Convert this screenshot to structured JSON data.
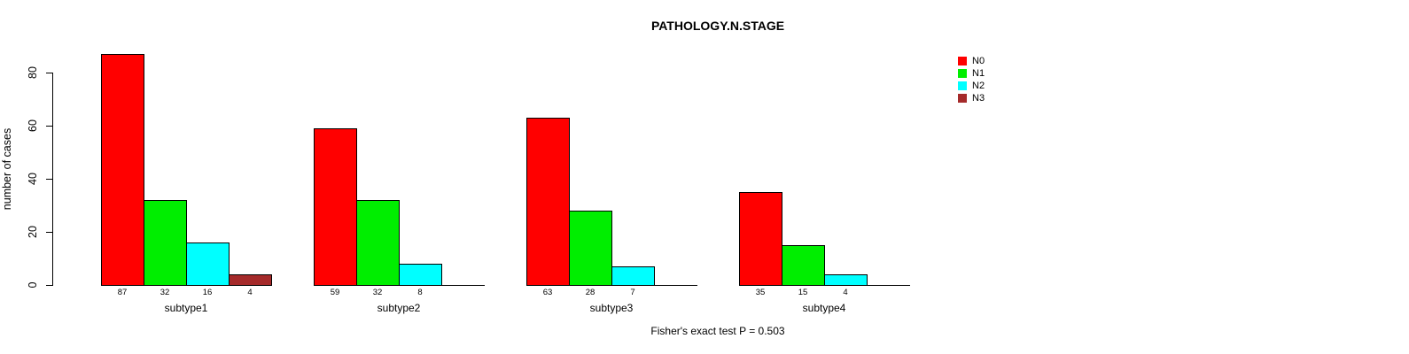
{
  "chart_data": {
    "type": "bar",
    "title": "PATHOLOGY.N.STAGE",
    "categories": [
      "subtype1",
      "subtype2",
      "subtype3",
      "subtype4"
    ],
    "series": [
      {
        "name": "N0",
        "color": "#FF0000",
        "values": [
          87,
          59,
          63,
          35
        ]
      },
      {
        "name": "N1",
        "color": "#00EE00",
        "values": [
          32,
          32,
          28,
          15
        ]
      },
      {
        "name": "N2",
        "color": "#00FFFF",
        "values": [
          16,
          8,
          7,
          4
        ]
      },
      {
        "name": "N3",
        "color": "#A52A2A",
        "values": [
          4,
          0,
          0,
          0
        ]
      }
    ],
    "xlabel": "",
    "ylabel": "number of cases",
    "ylim": [
      0,
      87
    ],
    "yticks": [
      0,
      20,
      40,
      60,
      80
    ],
    "grid": false,
    "bar_value_labels_shown": true,
    "legend_position": "top-right",
    "annotation": "Fisher's exact test P = 0.503"
  }
}
